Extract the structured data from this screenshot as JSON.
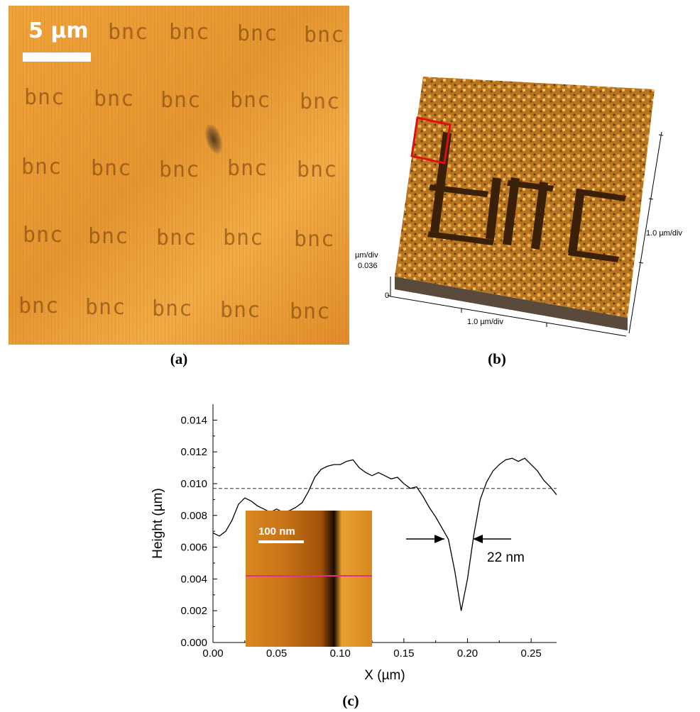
{
  "panel_a": {
    "scale_label": "5 µm",
    "pattern_text": "bnc",
    "caption": "(a)"
  },
  "panel_b": {
    "z_unit_label": "µm/div",
    "z_value": "0.036",
    "z_zero": "0",
    "x_label": "1.0 µm/div",
    "y_label": "1.0 µm/div",
    "caption": "(b)",
    "highlight_color": "#e01010"
  },
  "panel_c": {
    "caption": "(c)",
    "inset_scale_label": "100 nm",
    "width_annotation": "22 nm",
    "threshold_line_y": 0.0097
  },
  "chart_data": {
    "type": "line",
    "xlabel": "X (µm)",
    "ylabel": "Height (µm)",
    "xlim": [
      0.0,
      0.27
    ],
    "ylim": [
      0.0,
      0.015
    ],
    "x_ticks": [
      "0.00",
      "0.05",
      "0.10",
      "0.15",
      "0.20",
      "0.25"
    ],
    "y_ticks": [
      "0.000",
      "0.002",
      "0.004",
      "0.006",
      "0.008",
      "0.010",
      "0.012",
      "0.014"
    ],
    "grid": false,
    "series": [
      {
        "x": [
          0.0,
          0.005,
          0.01,
          0.015,
          0.02,
          0.025,
          0.03,
          0.035,
          0.04,
          0.045,
          0.05,
          0.055,
          0.06,
          0.065,
          0.07,
          0.075,
          0.08,
          0.085,
          0.09,
          0.095,
          0.1,
          0.105,
          0.11,
          0.115,
          0.12,
          0.125,
          0.13,
          0.135,
          0.14,
          0.145,
          0.15,
          0.155,
          0.16,
          0.165,
          0.17,
          0.175,
          0.18,
          0.185,
          0.19,
          0.195,
          0.2,
          0.205,
          0.21,
          0.215,
          0.22,
          0.225,
          0.23,
          0.235,
          0.24,
          0.245,
          0.25,
          0.255,
          0.26,
          0.265,
          0.27
        ],
        "y": [
          0.0069,
          0.0067,
          0.007,
          0.0077,
          0.0087,
          0.0091,
          0.0089,
          0.0086,
          0.0084,
          0.0082,
          0.0084,
          0.0082,
          0.0083,
          0.0085,
          0.0088,
          0.0095,
          0.0104,
          0.0109,
          0.0111,
          0.0112,
          0.0112,
          0.0114,
          0.0115,
          0.011,
          0.0107,
          0.0105,
          0.0107,
          0.0105,
          0.0103,
          0.0104,
          0.01,
          0.0097,
          0.0098,
          0.0092,
          0.0085,
          0.0079,
          0.0072,
          0.0065,
          0.0045,
          0.002,
          0.004,
          0.0068,
          0.009,
          0.0101,
          0.0108,
          0.0112,
          0.0115,
          0.0116,
          0.0114,
          0.0116,
          0.0112,
          0.0108,
          0.0102,
          0.0098,
          0.0093
        ]
      }
    ]
  }
}
